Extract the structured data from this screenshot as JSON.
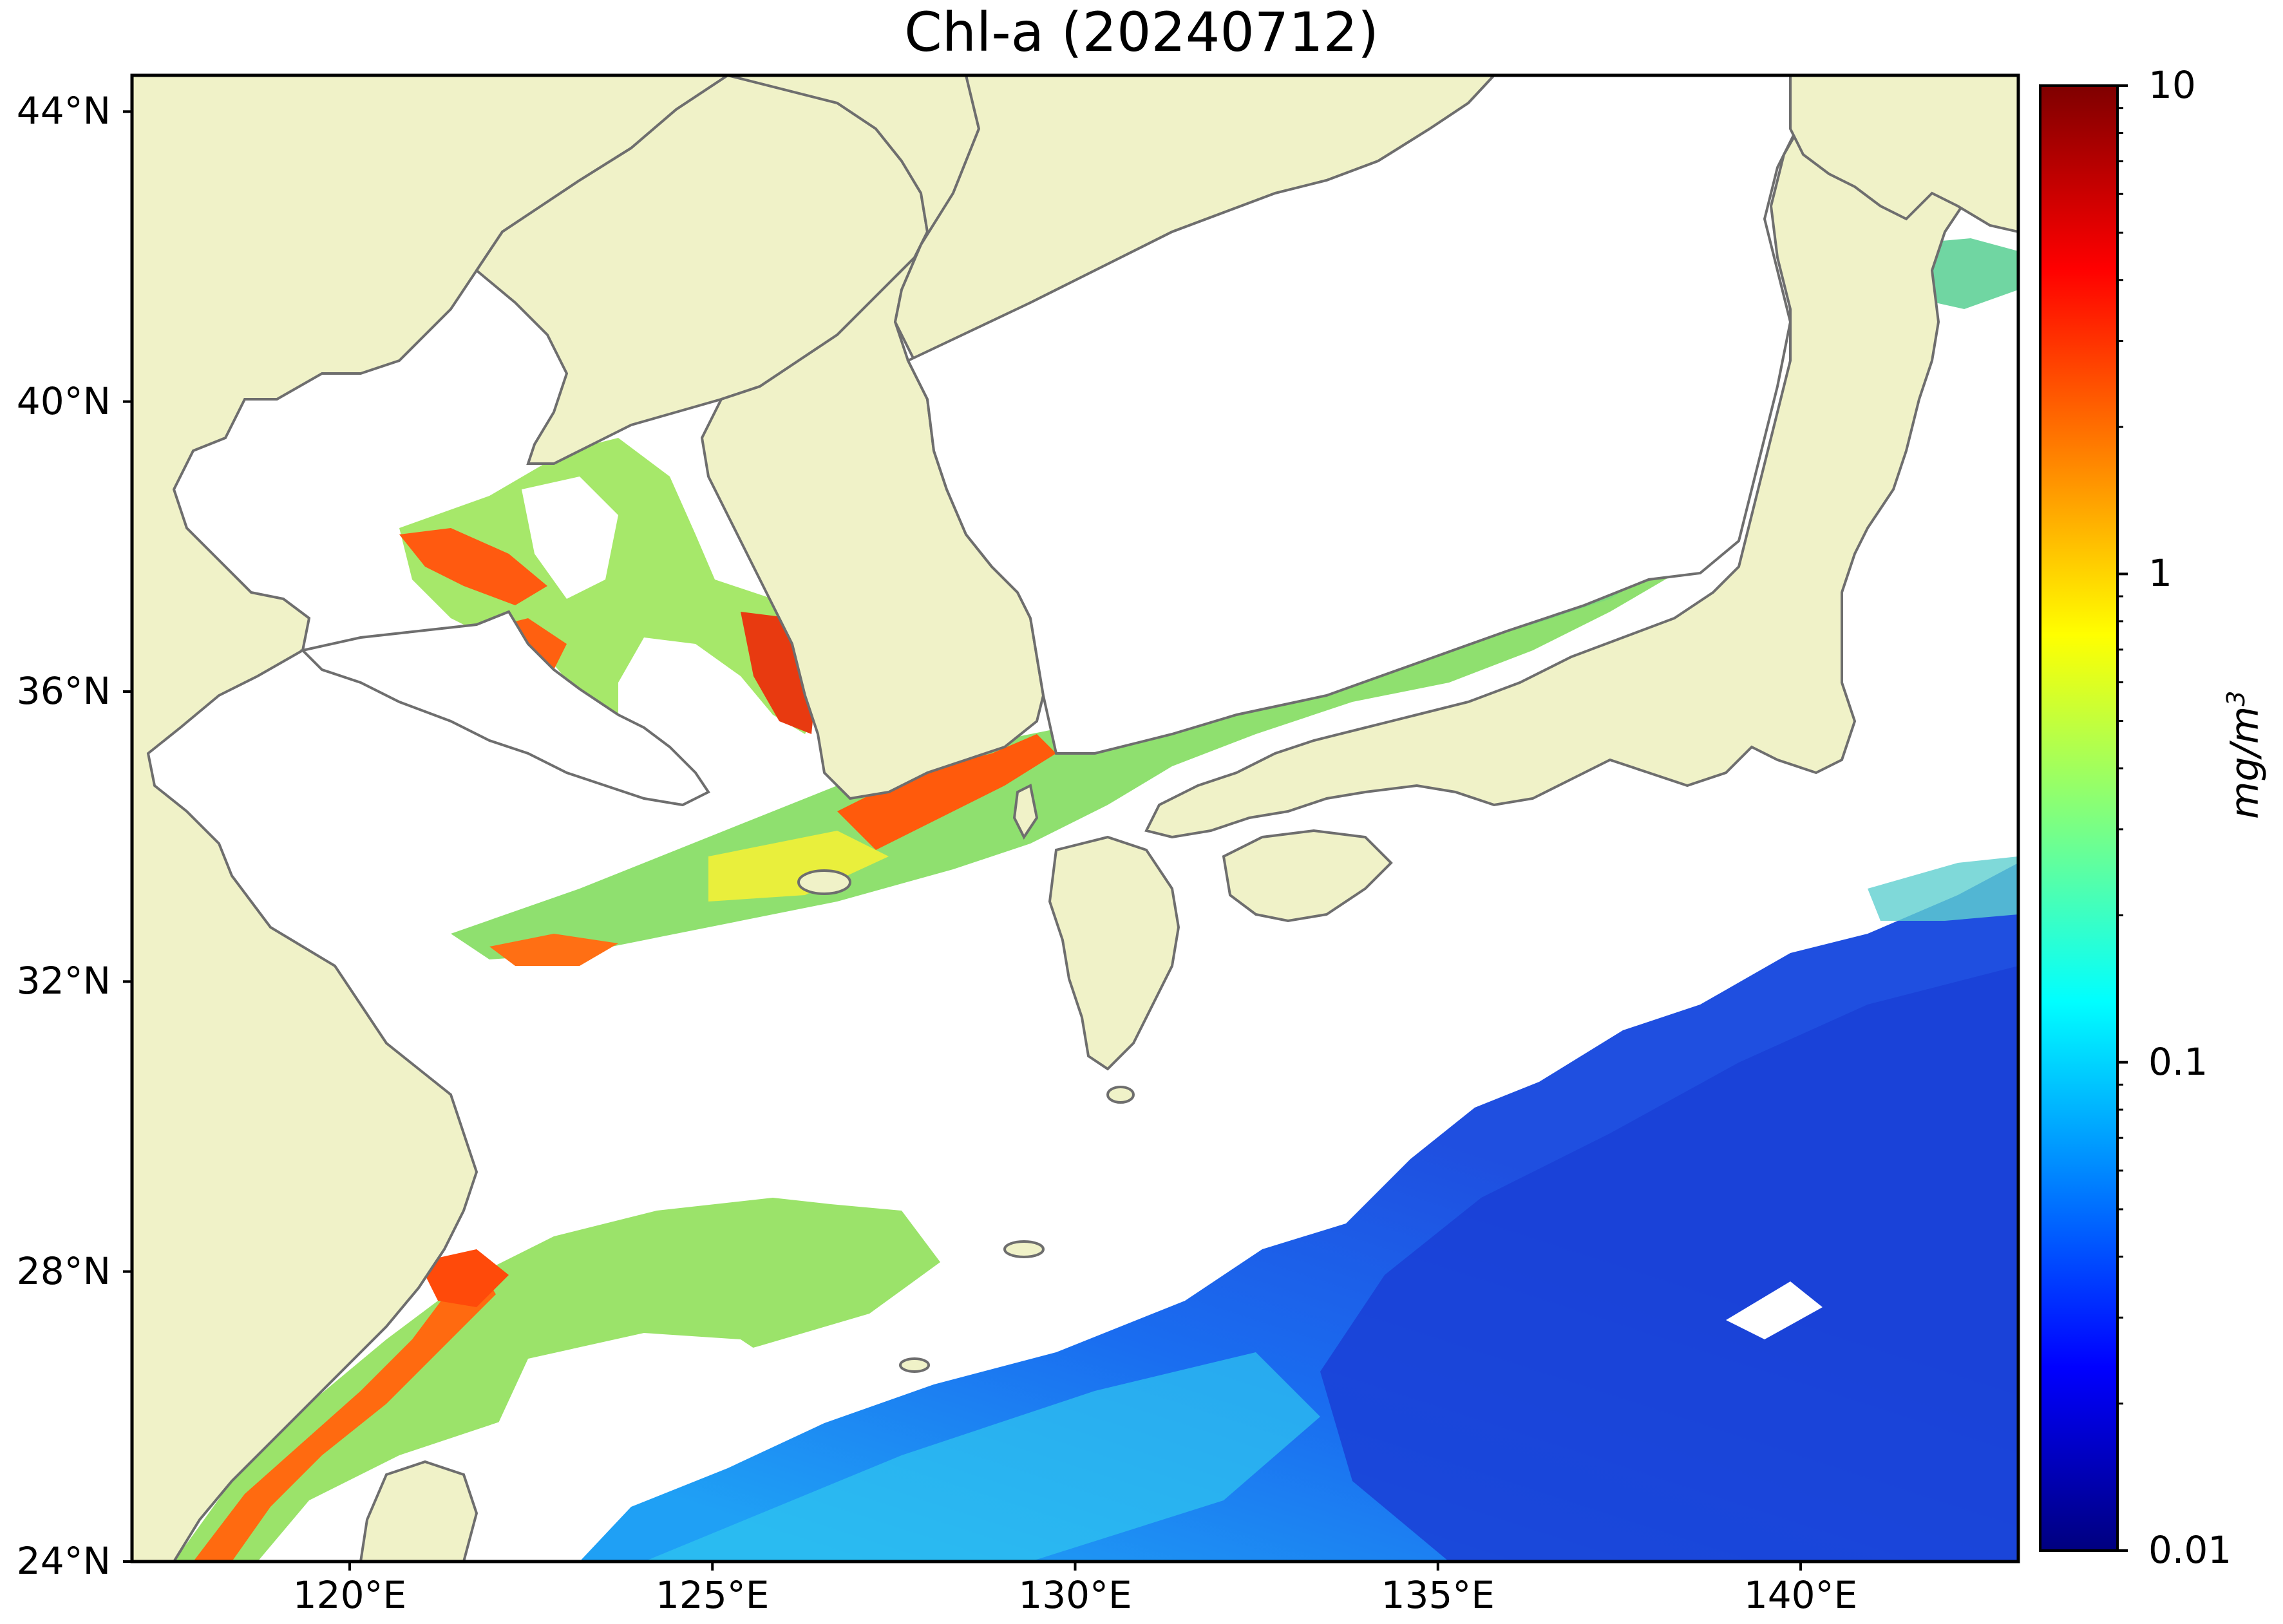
{
  "title": "Chl-a (20240712)",
  "map": {
    "extent": {
      "lon_min": 117,
      "lon_max": 143,
      "lat_min": 24,
      "lat_max": 44.5
    },
    "lat_ticks": [
      {
        "value": 44,
        "label": "44°N"
      },
      {
        "value": 40,
        "label": "40°N"
      },
      {
        "value": 36,
        "label": "36°N"
      },
      {
        "value": 32,
        "label": "32°N"
      },
      {
        "value": 28,
        "label": "28°N"
      },
      {
        "value": 24,
        "label": "24°N"
      }
    ],
    "lon_ticks": [
      {
        "value": 120,
        "label": "120°E"
      },
      {
        "value": 125,
        "label": "125°E"
      },
      {
        "value": 130,
        "label": "130°E"
      },
      {
        "value": 135,
        "label": "135°E"
      },
      {
        "value": 140,
        "label": "140°E"
      }
    ],
    "colors": {
      "land": "#f0f2c8",
      "coastline": "#6e6e6e",
      "no_data": "#ffffff",
      "frame": "#000000"
    }
  },
  "colorbar": {
    "unit_text": "mg/m",
    "unit_exp": "3",
    "scale": "log",
    "range": [
      0.01,
      10
    ],
    "colormap": "jet",
    "ticks": [
      {
        "value": 10,
        "label": "10"
      },
      {
        "value": 1,
        "label": "1"
      },
      {
        "value": 0.1,
        "label": "0.1"
      },
      {
        "value": 0.01,
        "label": "0.01"
      }
    ],
    "stops": [
      "#00007f",
      "#0000ff",
      "#007fff",
      "#00ffff",
      "#7fff7f",
      "#ffff00",
      "#ff7f00",
      "#ff0000",
      "#7f0000"
    ]
  }
}
